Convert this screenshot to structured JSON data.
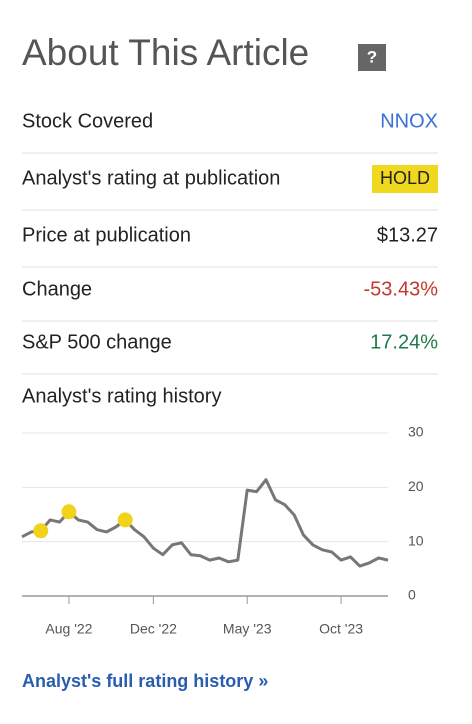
{
  "header": {
    "title": "About This Article",
    "help": "?"
  },
  "rows": [
    {
      "label": "Stock Covered",
      "value": "NNOX",
      "color": "#3a6fd8"
    },
    {
      "label": "Analyst's rating at publication",
      "value": "HOLD",
      "color": "#222222",
      "badge": "#f0d81e"
    },
    {
      "label": "Price at publication",
      "value": "$13.27",
      "color": "#222222"
    },
    {
      "label": "Change",
      "value": "-53.43%",
      "color": "#c0392b"
    },
    {
      "label": "S&P 500 change",
      "value": "17.24%",
      "color": "#1e7b4a"
    }
  ],
  "history_title": "Analyst's rating history",
  "chart_data": {
    "type": "line",
    "categories": [
      null,
      null,
      null,
      null,
      null,
      "Aug '22",
      null,
      null,
      null,
      null,
      null,
      null,
      null,
      null,
      "Dec '22",
      null,
      null,
      null,
      null,
      null,
      null,
      null,
      null,
      null,
      "May '23",
      null,
      null,
      null,
      null,
      null,
      null,
      null,
      null,
      null,
      "Oct '23",
      null,
      null,
      null,
      null,
      null
    ],
    "series": [
      {
        "color": "#777777",
        "style": "line",
        "values": [
          10.9,
          11.8,
          12.0,
          14.0,
          13.6,
          15.5,
          14.0,
          13.6,
          12.2,
          11.8,
          12.7,
          14.0,
          12.2,
          10.9,
          8.8,
          7.6,
          9.4,
          9.8,
          7.6,
          7.4,
          6.6,
          7.0,
          6.3,
          6.6,
          19.5,
          19.2,
          21.4,
          17.7,
          16.8,
          14.9,
          11.2,
          9.4,
          8.5,
          8.1,
          6.6,
          7.2,
          5.5,
          6.1,
          7.0,
          6.6
        ]
      },
      {
        "color": "#f2d21b",
        "style": "dots",
        "values": [
          null,
          null,
          12.0,
          null,
          null,
          15.5,
          null,
          null,
          null,
          null,
          null,
          14.0,
          null,
          null,
          null,
          null,
          null,
          null,
          null,
          null,
          null,
          null,
          null,
          null,
          null,
          null,
          null,
          null,
          null,
          null,
          null,
          null,
          null,
          null,
          null,
          null,
          null,
          null,
          null,
          null
        ]
      }
    ],
    "ylim": [
      0,
      30
    ],
    "yticks": [
      0,
      10,
      20,
      30
    ],
    "grid": true
  },
  "footer_link": "Analyst's full rating history »"
}
